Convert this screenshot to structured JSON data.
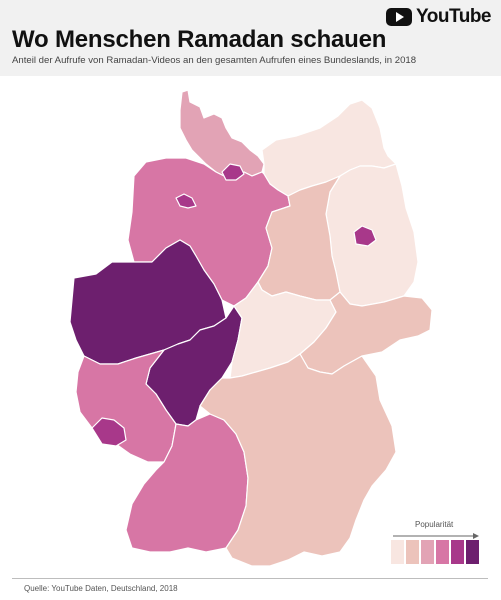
{
  "header": {
    "brand": "YouTube",
    "title": "Wo Menschen Ramadan schauen",
    "subtitle": "Anteil der Aufrufe von Ramadan-Videos an den gesamten Aufrufen eines Bundeslands, in 2018"
  },
  "legend": {
    "label": "Popularität",
    "levels": [
      {
        "level": 1,
        "color": "#f8e6e1"
      },
      {
        "level": 2,
        "color": "#ecc3bb"
      },
      {
        "level": 3,
        "color": "#e2a3b5"
      },
      {
        "level": 4,
        "color": "#d776a5"
      },
      {
        "level": 5,
        "color": "#a8388a"
      },
      {
        "level": 6,
        "color": "#6d1f6e"
      }
    ]
  },
  "states": [
    {
      "name": "Schleswig-Holstein",
      "level": 3
    },
    {
      "name": "Hamburg",
      "level": 5
    },
    {
      "name": "Mecklenburg-Vorpommern",
      "level": 1
    },
    {
      "name": "Niedersachsen",
      "level": 4
    },
    {
      "name": "Bremen",
      "level": 5
    },
    {
      "name": "Brandenburg",
      "level": 1
    },
    {
      "name": "Berlin",
      "level": 5
    },
    {
      "name": "Sachsen-Anhalt",
      "level": 2
    },
    {
      "name": "Nordrhein-Westfalen",
      "level": 6
    },
    {
      "name": "Hessen",
      "level": 6
    },
    {
      "name": "Thüringen",
      "level": 1
    },
    {
      "name": "Sachsen",
      "level": 2
    },
    {
      "name": "Rheinland-Pfalz",
      "level": 4
    },
    {
      "name": "Saarland",
      "level": 5
    },
    {
      "name": "Baden-Württemberg",
      "level": 4
    },
    {
      "name": "Bayern",
      "level": 2
    }
  ],
  "source": "Quelle: YouTube Daten, Deutschland, 2018"
}
